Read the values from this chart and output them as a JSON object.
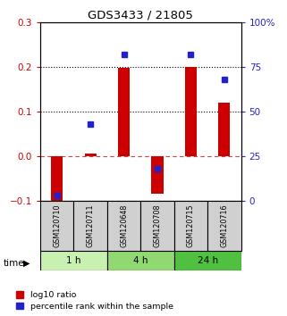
{
  "title": "GDS3433 / 21805",
  "samples": [
    "GSM120710",
    "GSM120711",
    "GSM120648",
    "GSM120708",
    "GSM120715",
    "GSM120716"
  ],
  "log10_ratio": [
    -0.11,
    0.005,
    0.198,
    -0.085,
    0.2,
    0.12
  ],
  "percentile_rank_pct": [
    3,
    43,
    82,
    18,
    82,
    68
  ],
  "time_groups": [
    {
      "label": "1 h",
      "start": 0,
      "end": 2,
      "color": "#c8f0b0"
    },
    {
      "label": "4 h",
      "start": 2,
      "end": 4,
      "color": "#90d870"
    },
    {
      "label": "24 h",
      "start": 4,
      "end": 6,
      "color": "#50c040"
    }
  ],
  "ylim_left": [
    -0.1,
    0.3
  ],
  "ylim_right": [
    0,
    100
  ],
  "right_ticks": [
    0,
    25,
    50,
    75,
    100
  ],
  "right_ticklabels": [
    "0",
    "25",
    "50",
    "75",
    "100%"
  ],
  "left_ticks": [
    -0.1,
    0.0,
    0.1,
    0.2,
    0.3
  ],
  "hlines_dotted": [
    0.1,
    0.2
  ],
  "hline_dashed": 0.0,
  "bar_color": "#cc0000",
  "dot_color": "#2222cc",
  "left_tick_color": "#cc0000",
  "right_tick_color": "#2222cc",
  "legend_red_label": "log10 ratio",
  "legend_blue_label": "percentile rank within the sample",
  "bar_width": 0.35
}
